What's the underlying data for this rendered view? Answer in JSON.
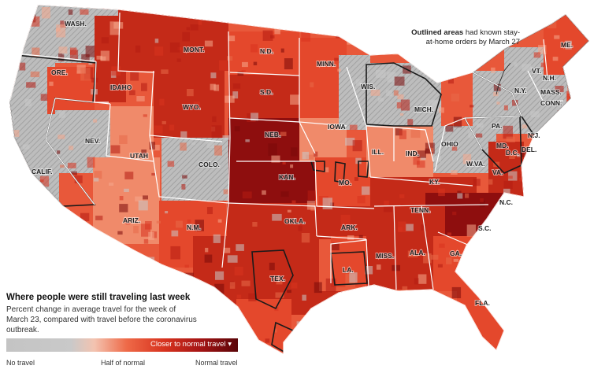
{
  "annotation": {
    "bold": "Outlined areas",
    "text": "had known stay-at-home orders by March 27"
  },
  "legend": {
    "title": "Where people were still traveling last week",
    "description": "Percent change in average travel for the week of March 23, compared with travel before the coronavirus outbreak.",
    "bar_label": "Closer to normal travel",
    "ticks": [
      "No travel",
      "Half of normal",
      "Normal travel"
    ]
  },
  "states": [
    "WASH.",
    "ORE.",
    "CALIF.",
    "NEV.",
    "IDAHO",
    "MONT.",
    "WYO.",
    "UTAH",
    "ARIZ.",
    "COLO.",
    "N.M.",
    "N.D.",
    "S.D.",
    "NEB.",
    "KAN.",
    "OKLA.",
    "TEX.",
    "MINN.",
    "IOWA",
    "MO.",
    "ARK.",
    "LA.",
    "WIS.",
    "ILL.",
    "MICH.",
    "IND.",
    "OHIO",
    "KY.",
    "TENN.",
    "MISS.",
    "ALA.",
    "GA.",
    "FLA.",
    "S.C.",
    "N.C.",
    "VA.",
    "W.VA.",
    "PA.",
    "N.Y.",
    "VT.",
    "N.H.",
    "ME.",
    "MASS.",
    "CONN.",
    "N.J.",
    "MD.",
    "DEL.",
    "D.C."
  ],
  "colors": {
    "no_travel": "#c4c4c4",
    "half_normal": "#ee6a48",
    "normal": "#5a0508",
    "state_border": "#ffffff",
    "outline": "#1a1a1a"
  }
}
